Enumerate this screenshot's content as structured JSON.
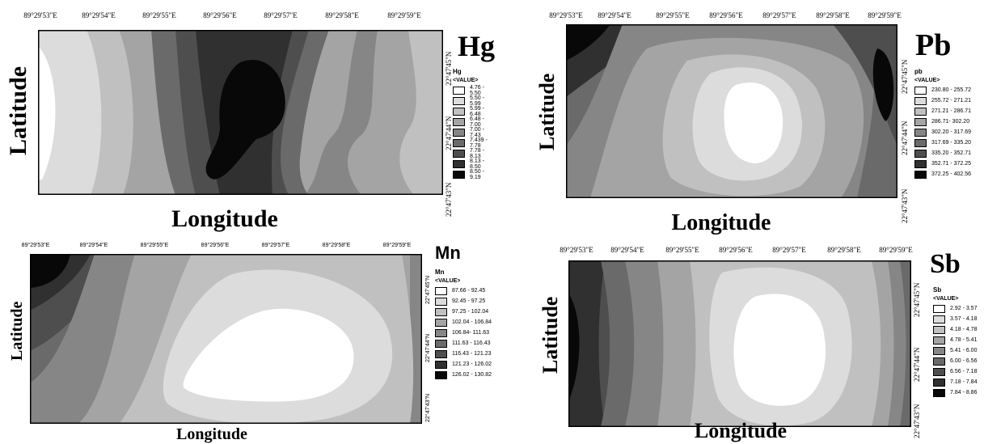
{
  "panels": [
    {
      "id": "hg",
      "title": "Hg",
      "ylabel": "Latitude",
      "xlabel": "Longitude",
      "x_ticks": [
        "89°29'53\"E",
        "89°29'54\"E",
        "89°29'55\"E",
        "89°29'56\"E",
        "89°29'57\"E",
        "89°29'58\"E",
        "89°29'59\"E"
      ],
      "y_ticks": [
        "22°47'45\"N",
        "22°47'44\"N",
        "22°47'43\"N"
      ],
      "legend_name": "Hg",
      "legend_value": "<VALUE>",
      "classes": [
        "4.76 - 5.50",
        "5.50 - 5.99",
        "5.99 - 6.48",
        "6.48 - 7.00",
        "7.00 - 7.43",
        "7.439 - 7.78",
        "7.78 - 8.13",
        "8.13 - 8.50",
        "8.50 - 9.19"
      ],
      "colors": [
        "#ffffff",
        "#dcdcdc",
        "#c0c0c0",
        "#a4a4a4",
        "#868686",
        "#6a6a6a",
        "#4e4e4e",
        "#303030",
        "#080808"
      ]
    },
    {
      "id": "pb",
      "title": "Pb",
      "ylabel": "Latitude",
      "xlabel": "Longitude",
      "x_ticks": [
        "89°29'53\"E",
        "89°29'54\"E",
        "89°29'55\"E",
        "89°29'56\"E",
        "89°29'57\"E",
        "89°29'58\"E",
        "89°29'59\"E"
      ],
      "y_ticks": [
        "22°47'45\"N",
        "22°47'44\"N",
        "22°47'43\"N"
      ],
      "legend_name": "pb",
      "legend_value": "<VALUE>",
      "classes": [
        "230.80 - 255.72",
        "255.72 - 271.21",
        "271.21 - 286.71",
        "286.71- 302.20",
        "302.20 - 317.69",
        "317.69 - 335.20",
        "335.20 - 352.71",
        "352.71 - 372.25",
        "372.25 - 402.56"
      ],
      "colors": [
        "#ffffff",
        "#dcdcdc",
        "#c0c0c0",
        "#a4a4a4",
        "#868686",
        "#6a6a6a",
        "#4e4e4e",
        "#303030",
        "#080808"
      ]
    },
    {
      "id": "mn",
      "title": "Mn",
      "ylabel": "Latitude",
      "xlabel": "Longitude",
      "x_ticks": [
        "89°29'53\"E",
        "89°29'54\"E",
        "89°29'55\"E",
        "89°29'56\"E",
        "89°29'57\"E",
        "89°29'58\"E",
        "89°29'59\"E"
      ],
      "y_ticks": [
        "22°47'45\"N",
        "22°47'44\"N",
        "22°47'43\"N"
      ],
      "legend_name": "Mn",
      "legend_value": "<VALUE>",
      "classes": [
        "87.66 - 92.45",
        "92.45 - 97.25",
        "97.25 - 102.04",
        "102.04 - 106.84",
        "106.84- 111.63",
        "111.63 - 116.43",
        "116.43 - 121.23",
        "121.23 - 126.02",
        "126.02 - 130.82"
      ],
      "colors": [
        "#ffffff",
        "#dcdcdc",
        "#c0c0c0",
        "#a4a4a4",
        "#868686",
        "#6a6a6a",
        "#4e4e4e",
        "#303030",
        "#080808"
      ]
    },
    {
      "id": "sb",
      "title": "Sb",
      "ylabel": "Latitude",
      "xlabel": "Longitude",
      "x_ticks": [
        "89°29'53\"E",
        "89°29'54\"E",
        "89°29'55\"E",
        "89°29'56\"E",
        "89°29'57\"E",
        "89°29'58\"E",
        "89°29'59\"E"
      ],
      "y_ticks": [
        "22°47'45\"N",
        "22°47'44\"N",
        "22°47'43\"N"
      ],
      "legend_name": "Sb",
      "legend_value": "<VALUE>",
      "classes": [
        "2.92 - 3.57",
        "3.57 - 4.18",
        "4.18 - 4.78",
        "4.78 - 5.41",
        "5.41 - 6.00",
        "6.00 - 6.56",
        "6.56 - 7.18",
        "7.18 - 7.84",
        "7.84 - 8.86"
      ],
      "colors": [
        "#ffffff",
        "#dcdcdc",
        "#c0c0c0",
        "#a4a4a4",
        "#868686",
        "#6a6a6a",
        "#4e4e4e",
        "#303030",
        "#080808"
      ]
    }
  ]
}
